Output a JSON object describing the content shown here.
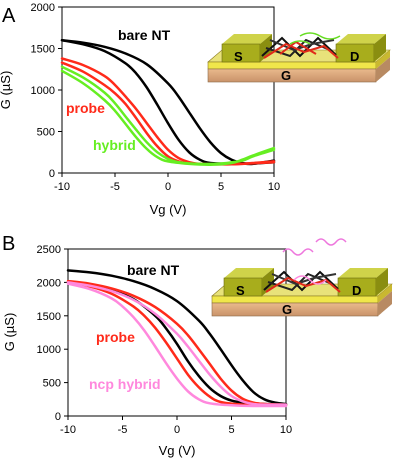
{
  "chart_data": [
    {
      "type": "line",
      "panel_label": "A",
      "xlabel": "Vg (V)",
      "ylabel": "G (µS)",
      "xlim": [
        -10,
        10
      ],
      "ylim": [
        0,
        2000
      ],
      "xticks": [
        -10,
        -5,
        0,
        5,
        10
      ],
      "yticks": [
        0,
        500,
        1000,
        1500,
        2000
      ],
      "grid": false,
      "series": [
        {
          "name": "bare NT",
          "color": "#000000",
          "curves": [
            {
              "x": [
                -10,
                -8,
                -6,
                -4,
                -2,
                0,
                1,
                2,
                3,
                4,
                5,
                6,
                7,
                8,
                10
              ],
              "y": [
                1600,
                1570,
                1520,
                1440,
                1310,
                1080,
                920,
                730,
                540,
                370,
                240,
                160,
                120,
                110,
                150
              ]
            },
            {
              "x": [
                -10,
                -8,
                -6,
                -4,
                -3,
                -2,
                -1,
                0,
                1,
                2,
                3,
                4,
                6,
                8,
                10
              ],
              "y": [
                1600,
                1550,
                1470,
                1320,
                1200,
                1030,
                820,
                600,
                400,
                250,
                160,
                120,
                110,
                115,
                130
              ]
            }
          ]
        },
        {
          "name": "probe",
          "color": "#ff2a1a",
          "curves": [
            {
              "x": [
                -10,
                -8,
                -6,
                -5,
                -4,
                -3,
                -2,
                -1,
                0,
                1,
                2,
                3,
                5,
                7,
                10
              ],
              "y": [
                1380,
                1300,
                1170,
                1060,
                920,
                770,
                600,
                430,
                280,
                180,
                130,
                110,
                105,
                110,
                130
              ]
            },
            {
              "x": [
                -10,
                -8,
                -6,
                -5,
                -4,
                -3,
                -2,
                -1,
                0,
                1,
                2,
                4,
                6,
                8,
                10
              ],
              "y": [
                1330,
                1220,
                1060,
                960,
                830,
                660,
                480,
                320,
                200,
                140,
                115,
                105,
                105,
                120,
                140
              ]
            }
          ]
        },
        {
          "name": "hybrid",
          "color": "#66ee22",
          "curves": [
            {
              "x": [
                -10,
                -8,
                -6,
                -5,
                -4,
                -3,
                -2,
                -1,
                0,
                1,
                3,
                5,
                7,
                8,
                10
              ],
              "y": [
                1280,
                1150,
                970,
                840,
                680,
                520,
                370,
                250,
                170,
                130,
                110,
                115,
                150,
                200,
                280
              ]
            },
            {
              "x": [
                -10,
                -8,
                -6,
                -5,
                -4,
                -3,
                -2,
                -1,
                0,
                2,
                4,
                6,
                7,
                8,
                10
              ],
              "y": [
                1230,
                1080,
                880,
                750,
                590,
                430,
                290,
                190,
                140,
                110,
                100,
                120,
                160,
                210,
                300
              ]
            }
          ]
        }
      ]
    },
    {
      "type": "line",
      "panel_label": "B",
      "xlabel": "Vg (V)",
      "ylabel": "G (µS)",
      "xlim": [
        -10,
        10
      ],
      "ylim": [
        0,
        2500
      ],
      "xticks": [
        -10,
        -5,
        0,
        5,
        10
      ],
      "yticks": [
        0,
        500,
        1000,
        1500,
        2000,
        2500
      ],
      "grid": false,
      "series": [
        {
          "name": "bare NT",
          "color": "#000000",
          "curves": [
            {
              "x": [
                -10,
                -8,
                -6,
                -4,
                -2,
                0,
                2,
                3,
                4,
                5,
                6,
                7,
                8,
                9,
                10
              ],
              "y": [
                2180,
                2150,
                2100,
                2020,
                1900,
                1720,
                1430,
                1230,
                1000,
                760,
                540,
                360,
                250,
                200,
                180
              ]
            },
            {
              "x": [
                -10,
                -8,
                -6,
                -4,
                -2,
                -1,
                0,
                1,
                2,
                3,
                4,
                5,
                6,
                8,
                10
              ],
              "y": [
                2000,
                1960,
                1880,
                1750,
                1500,
                1310,
                1080,
                820,
                600,
                420,
                300,
                230,
                200,
                180,
                170
              ]
            }
          ]
        },
        {
          "name": "probe",
          "color": "#ff2a1a",
          "curves": [
            {
              "x": [
                -10,
                -8,
                -6,
                -4,
                -2,
                0,
                1,
                2,
                3,
                4,
                5,
                6,
                7,
                8,
                10
              ],
              "y": [
                2020,
                1980,
                1910,
                1800,
                1630,
                1380,
                1210,
                1000,
                780,
                560,
                380,
                260,
                200,
                180,
                170
              ]
            },
            {
              "x": [
                -10,
                -8,
                -6,
                -4,
                -3,
                -2,
                -1,
                0,
                1,
                2,
                3,
                4,
                6,
                8,
                10
              ],
              "y": [
                2000,
                1940,
                1830,
                1640,
                1500,
                1320,
                1100,
                860,
                620,
                430,
                290,
                210,
                170,
                160,
                160
              ]
            }
          ]
        },
        {
          "name": "ncp hybrid",
          "color": "#ff88dd",
          "curves": [
            {
              "x": [
                -10,
                -8,
                -6,
                -4,
                -2,
                0,
                1,
                2,
                3,
                4,
                5,
                6,
                7,
                8,
                10
              ],
              "y": [
                2000,
                1950,
                1870,
                1740,
                1530,
                1230,
                1040,
                830,
                620,
                440,
                300,
                220,
                180,
                170,
                170
              ]
            },
            {
              "x": [
                -10,
                -8,
                -6,
                -5,
                -4,
                -3,
                -2,
                -1,
                0,
                1,
                2,
                3,
                5,
                7,
                10
              ],
              "y": [
                1980,
                1900,
                1760,
                1640,
                1480,
                1280,
                1040,
                790,
                560,
                370,
                250,
                190,
                160,
                150,
                150
              ]
            }
          ]
        }
      ]
    }
  ],
  "insets": [
    {
      "source_label": "S",
      "drain_label": "D",
      "gate_label": "G",
      "has_dna": true
    },
    {
      "source_label": "S",
      "drain_label": "D",
      "gate_label": "G",
      "has_dna": true
    }
  ]
}
